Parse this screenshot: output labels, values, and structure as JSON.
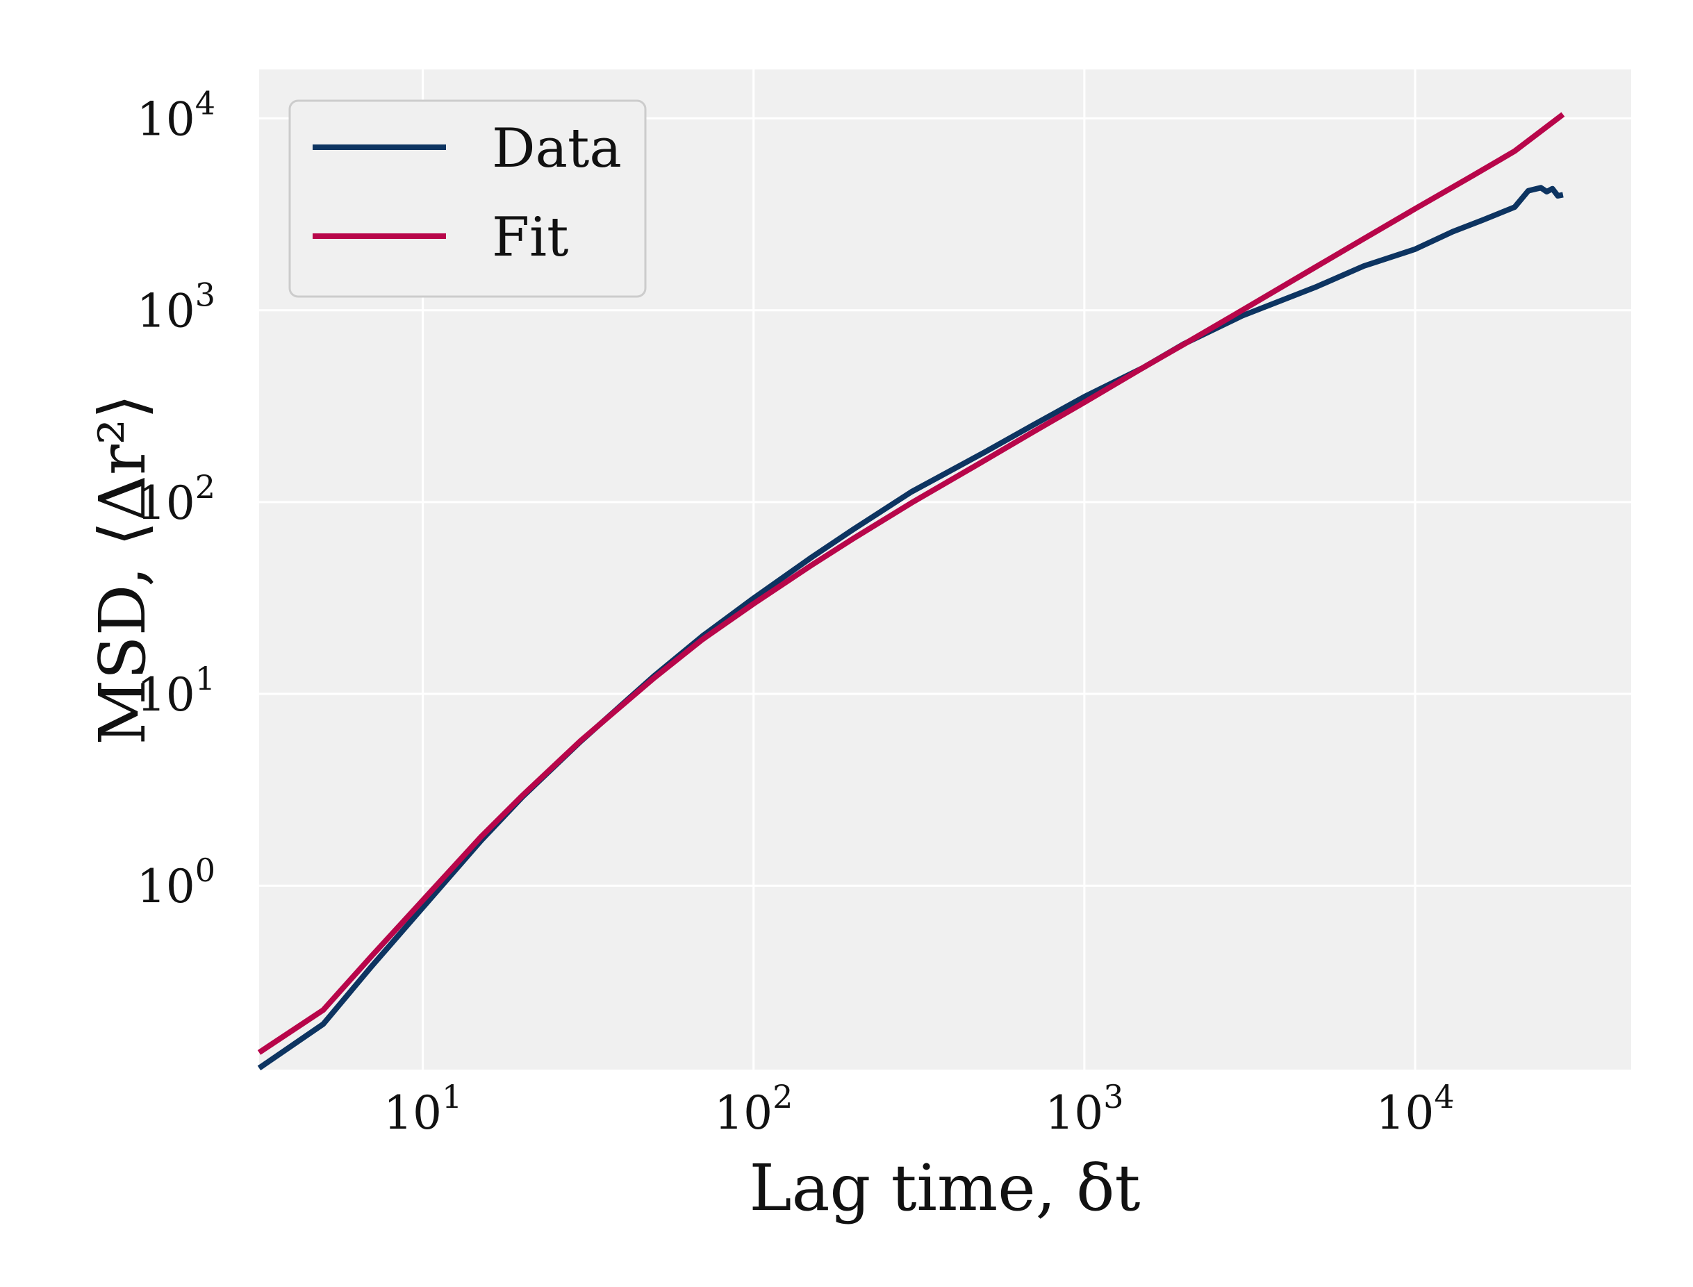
{
  "chart_data": {
    "type": "line",
    "title": "",
    "xlabel": "Lag time, δt",
    "ylabel": "MSD, ⟨Δr²⟩",
    "xscale": "log",
    "yscale": "log",
    "xlim": [
      3.2,
      45000
    ],
    "ylim": [
      0.11,
      18000
    ],
    "grid": true,
    "legend_position": "top-left",
    "x_ticks": [
      {
        "base": "10",
        "exp": "1",
        "value": 10
      },
      {
        "base": "10",
        "exp": "2",
        "value": 100
      },
      {
        "base": "10",
        "exp": "3",
        "value": 1000
      },
      {
        "base": "10",
        "exp": "4",
        "value": 10000
      }
    ],
    "y_ticks": [
      {
        "base": "10",
        "exp": "0",
        "value": 1
      },
      {
        "base": "10",
        "exp": "1",
        "value": 10
      },
      {
        "base": "10",
        "exp": "2",
        "value": 100
      },
      {
        "base": "10",
        "exp": "3",
        "value": 1000
      },
      {
        "base": "10",
        "exp": "4",
        "value": 10000
      }
    ],
    "colors": {
      "background": "#f0f0f0",
      "grid": "#ffffff"
    },
    "series": [
      {
        "name": "Data",
        "color": "#0d3461",
        "x": [
          3.2,
          5,
          7,
          10,
          15,
          20,
          30,
          50,
          70,
          100,
          150,
          200,
          300,
          500,
          700,
          1000,
          1500,
          2000,
          3000,
          5000,
          7000,
          10000,
          13000,
          16000,
          20000,
          22000,
          24000,
          25000,
          26000,
          27000,
          28000
        ],
        "y": [
          0.112,
          0.19,
          0.38,
          0.77,
          1.72,
          2.9,
          5.65,
          12.4,
          20.0,
          31.5,
          51.6,
          72.0,
          113,
          182,
          252,
          354,
          500,
          668,
          935,
          1320,
          1700,
          2080,
          2570,
          2950,
          3450,
          4200,
          4350,
          4150,
          4300,
          3950,
          4000
        ]
      },
      {
        "name": "Fit",
        "color": "#b8064a",
        "x": [
          3.2,
          5,
          7,
          10,
          15,
          20,
          30,
          50,
          70,
          100,
          150,
          200,
          300,
          500,
          700,
          1000,
          1500,
          2000,
          3000,
          5000,
          7000,
          10000,
          15000,
          20000,
          28000
        ],
        "y": [
          0.135,
          0.225,
          0.43,
          0.84,
          1.8,
          2.95,
          5.7,
          12.1,
          19.2,
          29.5,
          47,
          64.5,
          99,
          165,
          232,
          331,
          500,
          665,
          1000,
          1680,
          2360,
          3380,
          5050,
          6750,
          10500
        ]
      }
    ]
  }
}
